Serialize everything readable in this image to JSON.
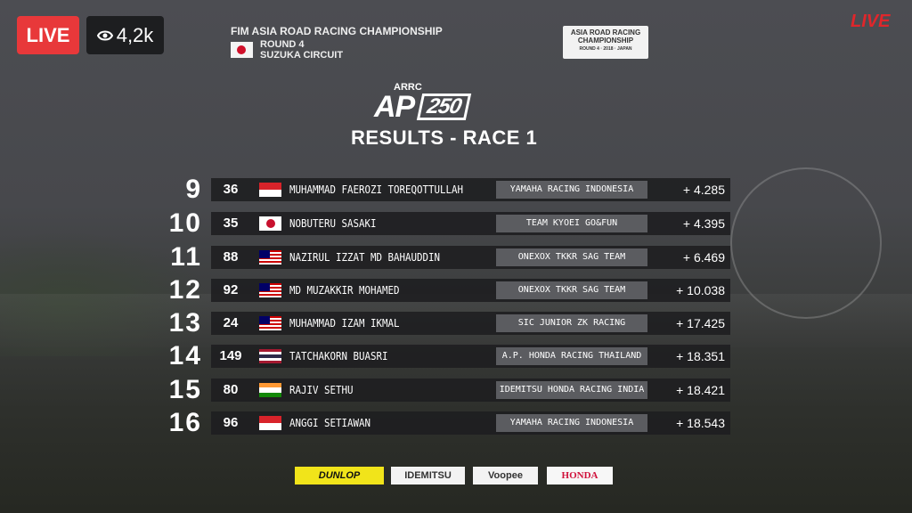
{
  "stream": {
    "live_label": "LIVE",
    "viewers": "4,2k",
    "corner_live": "LIVE"
  },
  "header": {
    "championship": "FIM ASIA ROAD RACING CHAMPIONSHIP",
    "round": "ROUND 4",
    "circuit": "SUZUKA CIRCUIT",
    "logo_text": "ASIA ROAD RACING CHAMPIONSHIP",
    "logo_sub": "ROUND 4 · 2018 · JAPAN"
  },
  "class": {
    "series": "ARRC",
    "prefix": "AP",
    "cc": "250"
  },
  "title": "RESULTS - RACE 1",
  "results": [
    {
      "pos": "9",
      "num": "36",
      "flag": "indonesia",
      "name": "MUHAMMAD FAEROZI TOREQOTTULLAH",
      "team": "YAMAHA RACING INDONESIA",
      "gap": "+ 4.285"
    },
    {
      "pos": "10",
      "num": "35",
      "flag": "japan",
      "name": "NOBUTERU SASAKI",
      "team": "TEAM KYOEI GO&FUN",
      "gap": "+ 4.395"
    },
    {
      "pos": "11",
      "num": "88",
      "flag": "malaysia",
      "name": "NAZIRUL IZZAT MD BAHAUDDIN",
      "team": "ONEXOX TKKR SAG TEAM",
      "gap": "+ 6.469"
    },
    {
      "pos": "12",
      "num": "92",
      "flag": "malaysia",
      "name": "MD MUZAKKIR MOHAMED",
      "team": "ONEXOX TKKR SAG TEAM",
      "gap": "+ 10.038"
    },
    {
      "pos": "13",
      "num": "24",
      "flag": "malaysia",
      "name": "MUHAMMAD IZAM IKMAL",
      "team": "SIC JUNIOR ZK RACING",
      "gap": "+ 17.425"
    },
    {
      "pos": "14",
      "num": "149",
      "flag": "thailand",
      "name": "TATCHAKORN BUASRI",
      "team": "A.P. HONDA RACING THAILAND",
      "gap": "+ 18.351"
    },
    {
      "pos": "15",
      "num": "80",
      "flag": "india",
      "name": "RAJIV SETHU",
      "team": "IDEMITSU HONDA RACING INDIA",
      "gap": "+ 18.421"
    },
    {
      "pos": "16",
      "num": "96",
      "flag": "indonesia",
      "name": "ANGGI SETIAWAN",
      "team": "YAMAHA RACING INDONESIA",
      "gap": "+ 18.543"
    }
  ],
  "sponsors": [
    "DUNLOP",
    "IDEMITSU",
    "Voopee",
    "HONDA"
  ],
  "colors": {
    "live": "#e8383a",
    "row_bg": "#1e1e20",
    "team_bg": "#5b5c60"
  }
}
